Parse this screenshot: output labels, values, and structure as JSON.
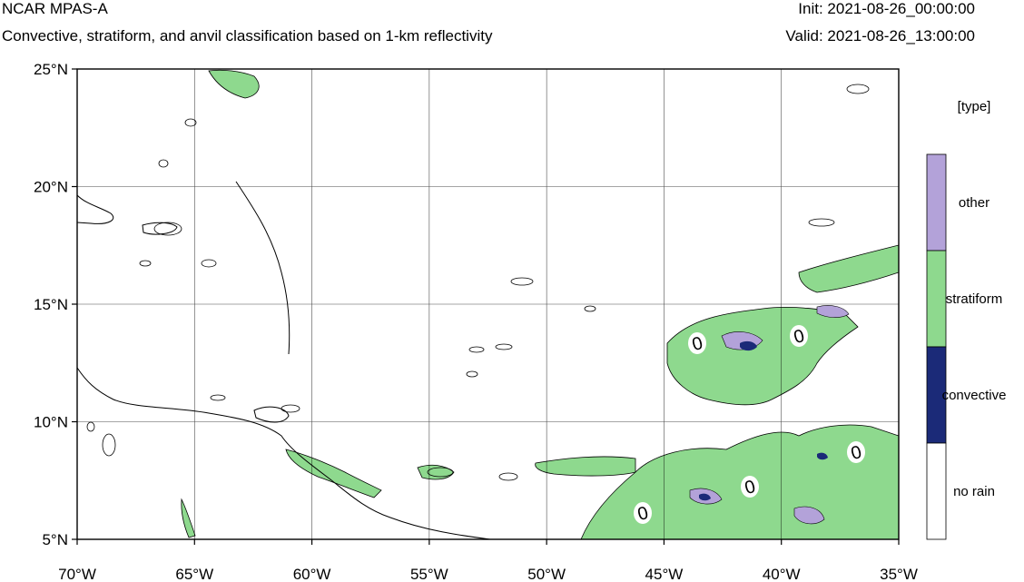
{
  "header": {
    "title": "NCAR MPAS-A",
    "subtitle": "Convective, stratiform, and anvil classification based on 1-km reflectivity",
    "init": "Init: 2021-08-26_00:00:00",
    "valid": "Valid: 2021-08-26_13:00:00"
  },
  "map": {
    "lon_range": [
      -70,
      -35
    ],
    "lat_range": [
      5,
      25
    ],
    "lon_ticks": [
      {
        "value": -70,
        "label": "70°W"
      },
      {
        "value": -65,
        "label": "65°W"
      },
      {
        "value": -60,
        "label": "60°W"
      },
      {
        "value": -55,
        "label": "55°W"
      },
      {
        "value": -50,
        "label": "50°W"
      },
      {
        "value": -45,
        "label": "45°W"
      },
      {
        "value": -40,
        "label": "40°W"
      },
      {
        "value": -35,
        "label": "35°W"
      }
    ],
    "lat_ticks": [
      {
        "value": 25,
        "label": "25°N"
      },
      {
        "value": 20,
        "label": "20°N"
      },
      {
        "value": 15,
        "label": "15°N"
      },
      {
        "value": 10,
        "label": "10°N"
      },
      {
        "value": 5,
        "label": "5°N"
      }
    ],
    "grid": true,
    "contour_label": "0"
  },
  "legend": {
    "title": "[type]",
    "entries": [
      {
        "label": "other",
        "color": "#b3a2d9"
      },
      {
        "label": "stratiform",
        "color": "#8ed98e"
      },
      {
        "label": "convective",
        "color": "#1b2a78"
      },
      {
        "label": "no rain",
        "color": "#ffffff"
      }
    ]
  },
  "colors": {
    "stratiform": "#8ed98e",
    "other": "#b3a2d9",
    "convective": "#1b2a78"
  }
}
